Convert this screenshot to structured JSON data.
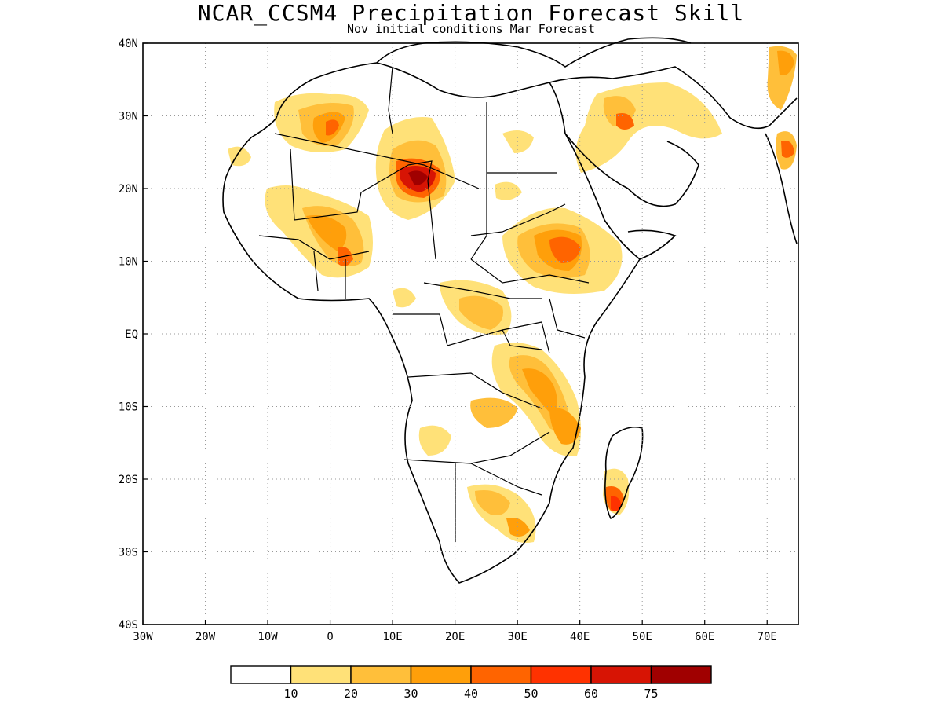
{
  "title": "NCAR_CCSM4 Precipitation Forecast Skill",
  "subtitle": "Nov initial conditions  Mar Forecast",
  "map": {
    "lon_range": [
      -30,
      75
    ],
    "lat_range": [
      -40,
      40
    ],
    "x_ticks": [
      {
        "lon": -30,
        "label": "30W"
      },
      {
        "lon": -20,
        "label": "20W"
      },
      {
        "lon": -10,
        "label": "10W"
      },
      {
        "lon": 0,
        "label": "0"
      },
      {
        "lon": 10,
        "label": "10E"
      },
      {
        "lon": 20,
        "label": "20E"
      },
      {
        "lon": 30,
        "label": "30E"
      },
      {
        "lon": 40,
        "label": "40E"
      },
      {
        "lon": 50,
        "label": "50E"
      },
      {
        "lon": 60,
        "label": "60E"
      },
      {
        "lon": 70,
        "label": "70E"
      }
    ],
    "y_ticks": [
      {
        "lat": 40,
        "label": "40N"
      },
      {
        "lat": 30,
        "label": "30N"
      },
      {
        "lat": 20,
        "label": "20N"
      },
      {
        "lat": 10,
        "label": "10N"
      },
      {
        "lat": 0,
        "label": "EQ"
      },
      {
        "lat": -10,
        "label": "10S"
      },
      {
        "lat": -20,
        "label": "20S"
      },
      {
        "lat": -30,
        "label": "30S"
      },
      {
        "lat": -40,
        "label": "40S"
      }
    ],
    "grid": "dotted"
  },
  "colorbar": {
    "colors": [
      "#ffffff",
      "#ffe178",
      "#ffbf3a",
      "#ff9f0a",
      "#ff6400",
      "#ff3200",
      "#d71404",
      "#a00000"
    ],
    "labels": [
      "10",
      "20",
      "30",
      "40",
      "50",
      "60",
      "75"
    ]
  }
}
